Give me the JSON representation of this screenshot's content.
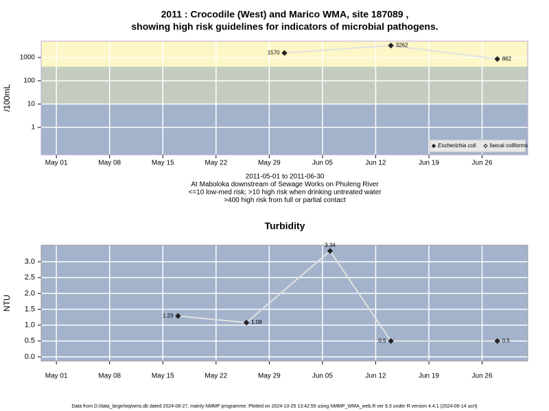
{
  "chart_data": [
    {
      "type": "line",
      "title": [
        "2011 : Crocodile (West) and Marico WMA, site 187089 ,",
        "showing high risk guidelines for indicators of microbial pathogens."
      ],
      "notes": [
        "2011-05-01 to 2011-06-30",
        "At Maboloka downstream of Sewage Works on Phuleng River",
        "<=10 low-med risk; >10 high risk when drinking untreated water",
        ">400 high risk from full or partial contact"
      ],
      "y_label": "/100mL",
      "log_y": true,
      "grid": true,
      "x": [
        "2011-05-31",
        "2011-06-14",
        "2011-06-28"
      ],
      "series": [
        {
          "name": "Escherichia coli",
          "color": "#222222",
          "marker": "filled",
          "values": [
            1570,
            3262,
            862
          ]
        },
        {
          "name": "faecal coliforms",
          "color": "#222222",
          "marker": "open",
          "values": [
            null,
            null,
            null
          ]
        }
      ],
      "line_color": "#e2e2e2",
      "bands": [
        {
          "to": 10,
          "color": "#a3b3cc"
        },
        {
          "from": 10,
          "to": 400,
          "color": "#c4ccc0"
        },
        {
          "from": 400,
          "color": "#fdf6c6"
        }
      ],
      "legend": "bottom-right",
      "xlim": [
        "2011-04-29",
        "2011-07-02"
      ],
      "xticks": [
        {
          "value": "2011-05-01",
          "label": "May 01"
        },
        {
          "value": "2011-05-08",
          "label": "May 08"
        },
        {
          "value": "2011-05-15",
          "label": "May 15"
        },
        {
          "value": "2011-05-22",
          "label": "May 22"
        },
        {
          "value": "2011-05-29",
          "label": "May 29"
        },
        {
          "value": "2011-06-05",
          "label": "Jun 05"
        },
        {
          "value": "2011-06-12",
          "label": "Jun 12"
        },
        {
          "value": "2011-06-19",
          "label": "Jun 19"
        },
        {
          "value": "2011-06-26",
          "label": "Jun 26"
        }
      ],
      "ylim": [
        0.066,
        5080
      ],
      "yticks": [
        1,
        10,
        100,
        1000
      ]
    },
    {
      "type": "line",
      "title": [
        "Turbidity"
      ],
      "y_label": "NTU",
      "log_y": false,
      "grid": true,
      "x": [
        "2011-05-17",
        "2011-05-26",
        "2011-06-06",
        "2011-06-14",
        "2011-06-28"
      ],
      "series": [
        {
          "color": "#222222",
          "marker": "filled",
          "values": [
            1.29,
            1.08,
            3.34,
            0.5,
            0.5
          ]
        }
      ],
      "line_color": "#e2e2e2",
      "bands": [
        {
          "color": "#a3b3cc"
        }
      ],
      "xlim": [
        "2011-04-29",
        "2011-07-02"
      ],
      "xticks": [
        {
          "value": "2011-05-01",
          "label": "May 01"
        },
        {
          "value": "2011-05-08",
          "label": "May 08"
        },
        {
          "value": "2011-05-15",
          "label": "May 15"
        },
        {
          "value": "2011-05-22",
          "label": "May 22"
        },
        {
          "value": "2011-05-29",
          "label": "May 29"
        },
        {
          "value": "2011-06-05",
          "label": "Jun 05"
        },
        {
          "value": "2011-06-12",
          "label": "Jun 12"
        },
        {
          "value": "2011-06-19",
          "label": "Jun 19"
        },
        {
          "value": "2011-06-26",
          "label": "Jun 26"
        }
      ],
      "ylim": [
        -0.13,
        3.52
      ],
      "yticks": [
        {
          "value": 0,
          "label": "0.0"
        },
        0.5,
        {
          "value": 1,
          "label": "1.0"
        },
        1.5,
        {
          "value": 2,
          "label": "2.0"
        },
        2.5,
        {
          "value": 3,
          "label": "3.0"
        }
      ]
    }
  ],
  "footer": "Data from D:/data_large/wq/wms.db dated 2024-08-27, mainly NMMP programme. Plotted on 2024-10-25 13:42:55 using NMMP_WMA_web.R ver 9.3 under R version 4.4.1 (2024-06-14 ucrt)"
}
